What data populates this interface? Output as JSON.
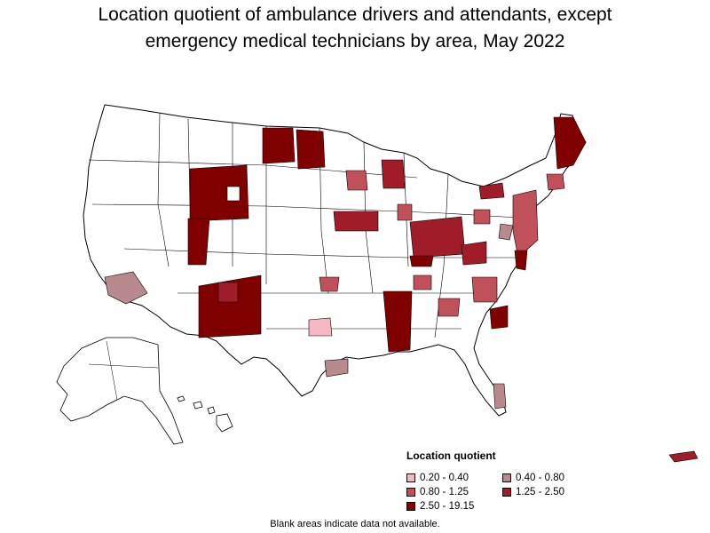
{
  "title_line1": "Location quotient of ambulance drivers and attendants, except",
  "title_line2": "emergency medical technicians by area, May 2022",
  "legend": {
    "title": "Location quotient",
    "items": [
      {
        "label": "0.20 - 0.40",
        "color": "#f5b8c2"
      },
      {
        "label": "0.40 - 0.80",
        "color": "#b88a8e"
      },
      {
        "label": "0.80 - 1.25",
        "color": "#c0505a"
      },
      {
        "label": "1.25 - 2.50",
        "color": "#a01c28"
      },
      {
        "label": "2.50 - 19.15",
        "color": "#800000"
      }
    ]
  },
  "note": "Blank areas indicate data not available."
}
